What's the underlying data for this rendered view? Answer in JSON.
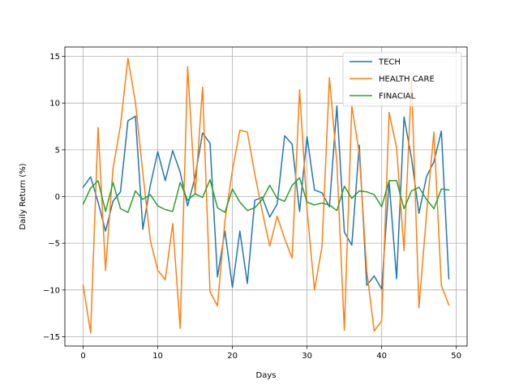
{
  "chart_data": {
    "type": "line",
    "title": "",
    "xlabel": "Days",
    "ylabel": "Daily Return (%)",
    "xlim": [
      -2.45,
      51.45
    ],
    "ylim": [
      -16.0,
      16.0
    ],
    "x_ticks": [
      0,
      10,
      20,
      30,
      40,
      50
    ],
    "y_ticks": [
      -15,
      -10,
      -5,
      0,
      5,
      10,
      15
    ],
    "grid": true,
    "legend_position": "top-right",
    "x": [
      0,
      1,
      2,
      3,
      4,
      5,
      6,
      7,
      8,
      9,
      10,
      11,
      12,
      13,
      14,
      15,
      16,
      17,
      18,
      19,
      20,
      21,
      22,
      23,
      24,
      25,
      26,
      27,
      28,
      29,
      30,
      31,
      32,
      33,
      34,
      35,
      36,
      37,
      38,
      39,
      40,
      41,
      42,
      43,
      44,
      45,
      46,
      47,
      48,
      49
    ],
    "series": [
      {
        "name": "TECH",
        "color": "#1f77b4",
        "values": [
          1.0,
          2.1,
          -0.6,
          -3.7,
          -0.5,
          0.5,
          8.1,
          8.6,
          -3.5,
          1.2,
          4.8,
          1.7,
          4.9,
          2.6,
          -1.0,
          2.1,
          6.8,
          5.7,
          -8.6,
          -3.7,
          -9.7,
          -3.7,
          -9.3,
          -0.4,
          -0.1,
          -2.2,
          -0.8,
          6.5,
          5.6,
          -1.6,
          6.4,
          0.7,
          0.4,
          -1.1,
          9.7,
          -3.8,
          -5.2,
          5.5,
          -9.5,
          -8.5,
          -9.9,
          1.6,
          -8.8,
          8.5,
          4.1,
          -1.8,
          2.1,
          3.7,
          7.0,
          -8.8
        ]
      },
      {
        "name": "HEALTH CARE",
        "color": "#ff7f0e",
        "values": [
          -9.5,
          -14.6,
          7.4,
          -7.9,
          3.0,
          7.6,
          14.8,
          10.1,
          2.5,
          -4.7,
          -7.9,
          -8.9,
          -2.9,
          -14.1,
          13.9,
          0.2,
          11.7,
          -10.2,
          -11.7,
          -2.6,
          2.8,
          7.1,
          6.9,
          2.4,
          -1.6,
          -5.3,
          -2.1,
          -4.5,
          -6.6,
          11.4,
          -1.4,
          -10.0,
          -5.4,
          12.7,
          3.6,
          -14.3,
          9.7,
          4.6,
          -7.9,
          -14.4,
          -13.3,
          9.0,
          5.2,
          -5.8,
          12.5,
          -11.9,
          -2.0,
          6.9,
          -9.5,
          -11.6
        ]
      },
      {
        "name": "FINACIAL",
        "color": "#2ca02c",
        "values": [
          -0.8,
          0.9,
          1.7,
          -1.6,
          1.5,
          -1.3,
          -1.7,
          0.6,
          -0.3,
          0.2,
          -1.0,
          -1.4,
          -1.6,
          1.5,
          -0.4,
          0.3,
          -0.1,
          1.8,
          -1.2,
          -1.7,
          0.8,
          -0.6,
          -1.5,
          -1.2,
          -0.3,
          1.2,
          -0.2,
          -0.5,
          1.2,
          2.0,
          -0.6,
          -0.9,
          -0.7,
          -0.9,
          -1.5,
          1.1,
          -0.2,
          0.6,
          0.5,
          0.2,
          -1.1,
          1.7,
          1.7,
          -1.3,
          0.6,
          1.0,
          -0.3,
          -1.3,
          0.8,
          0.7
        ]
      }
    ]
  }
}
